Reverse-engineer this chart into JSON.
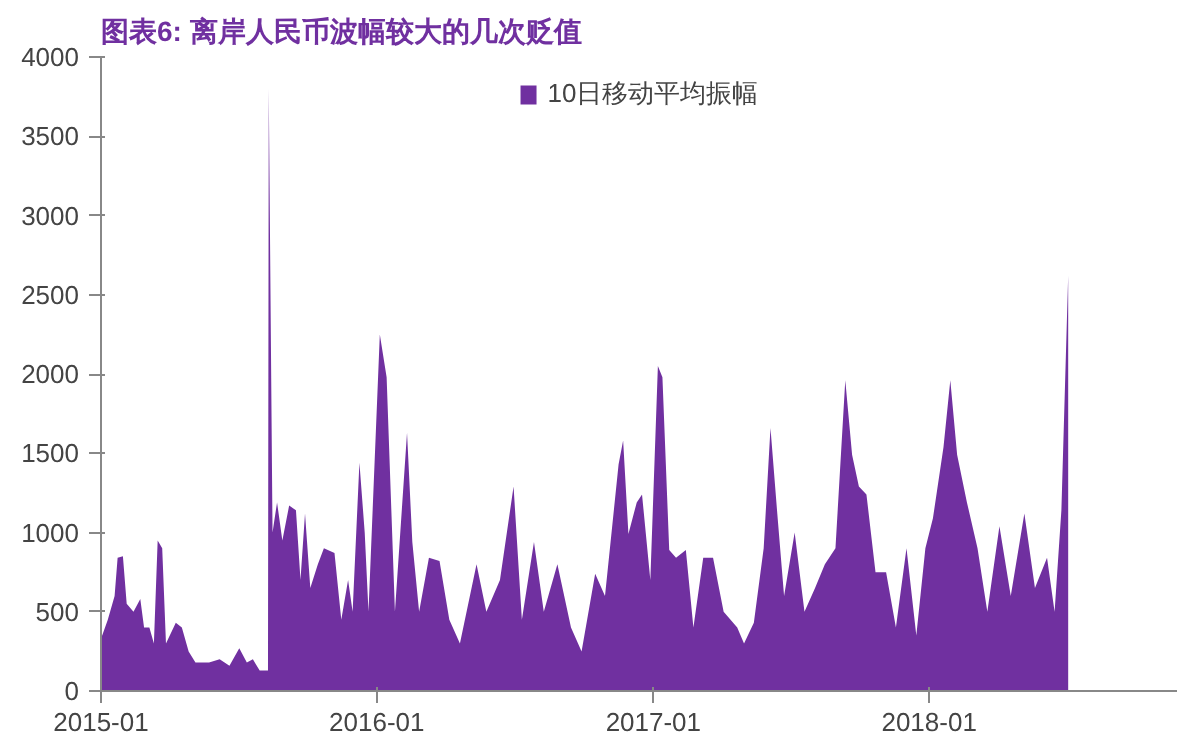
{
  "chart_data": {
    "type": "area",
    "title": "图表6:  离岸人民币波幅较大的几次贬值",
    "x": [
      "2015-01-01",
      "2015-01-10",
      "2015-01-19",
      "2015-01-23",
      "2015-01-30",
      "2015-02-04",
      "2015-02-13",
      "2015-02-22",
      "2015-02-27",
      "2015-03-06",
      "2015-03-12",
      "2015-03-17",
      "2015-03-23",
      "2015-03-28",
      "2015-04-10",
      "2015-04-18",
      "2015-04-27",
      "2015-05-06",
      "2015-05-24",
      "2015-06-07",
      "2015-06-20",
      "2015-07-03",
      "2015-07-13",
      "2015-07-21",
      "2015-07-30",
      "2015-08-06",
      "2015-08-10",
      "2015-08-11",
      "2015-08-16",
      "2015-08-22",
      "2015-08-29",
      "2015-09-07",
      "2015-09-16",
      "2015-09-22",
      "2015-09-28",
      "2015-10-05",
      "2015-10-15",
      "2015-10-23",
      "2015-11-06",
      "2015-11-15",
      "2015-11-24",
      "2015-11-30",
      "2015-12-09",
      "2015-12-16",
      "2015-12-21",
      "2016-01-05",
      "2016-01-14",
      "2016-01-25",
      "2016-02-10",
      "2016-02-17",
      "2016-02-26",
      "2016-03-10",
      "2016-03-24",
      "2016-04-06",
      "2016-04-20",
      "2016-05-12",
      "2016-05-25",
      "2016-06-12",
      "2016-06-30",
      "2016-07-11",
      "2016-07-27",
      "2016-08-09",
      "2016-08-27",
      "2016-09-14",
      "2016-09-28",
      "2016-10-16",
      "2016-10-29",
      "2016-11-16",
      "2016-11-22",
      "2016-11-29",
      "2016-12-10",
      "2016-12-17",
      "2016-12-28",
      "2017-01-07",
      "2017-01-13",
      "2017-01-22",
      "2017-01-31",
      "2017-02-13",
      "2017-02-23",
      "2017-03-08",
      "2017-03-21",
      "2017-04-04",
      "2017-04-22",
      "2017-05-01",
      "2017-05-14",
      "2017-05-27",
      "2017-06-05",
      "2017-06-14",
      "2017-06-23",
      "2017-07-07",
      "2017-07-20",
      "2017-08-03",
      "2017-08-16",
      "2017-08-30",
      "2017-09-12",
      "2017-09-21",
      "2017-09-30",
      "2017-10-10",
      "2017-10-22",
      "2017-11-05",
      "2017-11-18",
      "2017-12-02",
      "2017-12-15",
      "2017-12-27",
      "2018-01-06",
      "2018-01-20",
      "2018-01-29",
      "2018-02-07",
      "2018-02-20",
      "2018-03-06",
      "2018-03-19",
      "2018-04-04",
      "2018-04-19",
      "2018-05-07",
      "2018-05-21",
      "2018-06-06",
      "2018-06-16",
      "2018-06-25",
      "2018-07-04"
    ],
    "series": [
      {
        "name": "10日移动平均振幅",
        "color": "#7030a0",
        "values": [
          330,
          450,
          600,
          840,
          850,
          550,
          500,
          580,
          400,
          400,
          300,
          950,
          900,
          300,
          430,
          400,
          250,
          180,
          180,
          200,
          160,
          270,
          180,
          200,
          130,
          130,
          130,
          3800,
          1000,
          1190,
          950,
          1170,
          1140,
          700,
          1120,
          650,
          800,
          900,
          870,
          450,
          700,
          500,
          1440,
          1000,
          500,
          2250,
          1980,
          500,
          1630,
          940,
          500,
          840,
          820,
          450,
          300,
          800,
          500,
          700,
          1290,
          450,
          940,
          500,
          800,
          400,
          250,
          740,
          600,
          1430,
          1580,
          990,
          1190,
          1240,
          700,
          2050,
          1980,
          890,
          840,
          890,
          400,
          840,
          840,
          500,
          400,
          300,
          430,
          900,
          1660,
          1120,
          600,
          1000,
          500,
          650,
          800,
          900,
          1960,
          1490,
          1290,
          1240,
          750,
          750,
          400,
          900,
          350,
          900,
          1090,
          1540,
          1960,
          1490,
          1190,
          900,
          500,
          1040,
          600,
          1120,
          650,
          840,
          500,
          1140,
          2620
        ]
      }
    ],
    "xlim": [
      "2015-01-01",
      "2018-11-25"
    ],
    "xticks": [
      {
        "value": "2015-01-01",
        "label": "2015-01"
      },
      {
        "value": "2016-01-01",
        "label": "2016-01"
      },
      {
        "value": "2017-01-01",
        "label": "2017-01"
      },
      {
        "value": "2018-01-01",
        "label": "2018-01"
      }
    ],
    "ylim": [
      0,
      4000
    ],
    "yticks": [
      0,
      500,
      1000,
      1500,
      2000,
      2500,
      3000,
      3500,
      4000
    ],
    "grid": false,
    "legend": "top"
  }
}
